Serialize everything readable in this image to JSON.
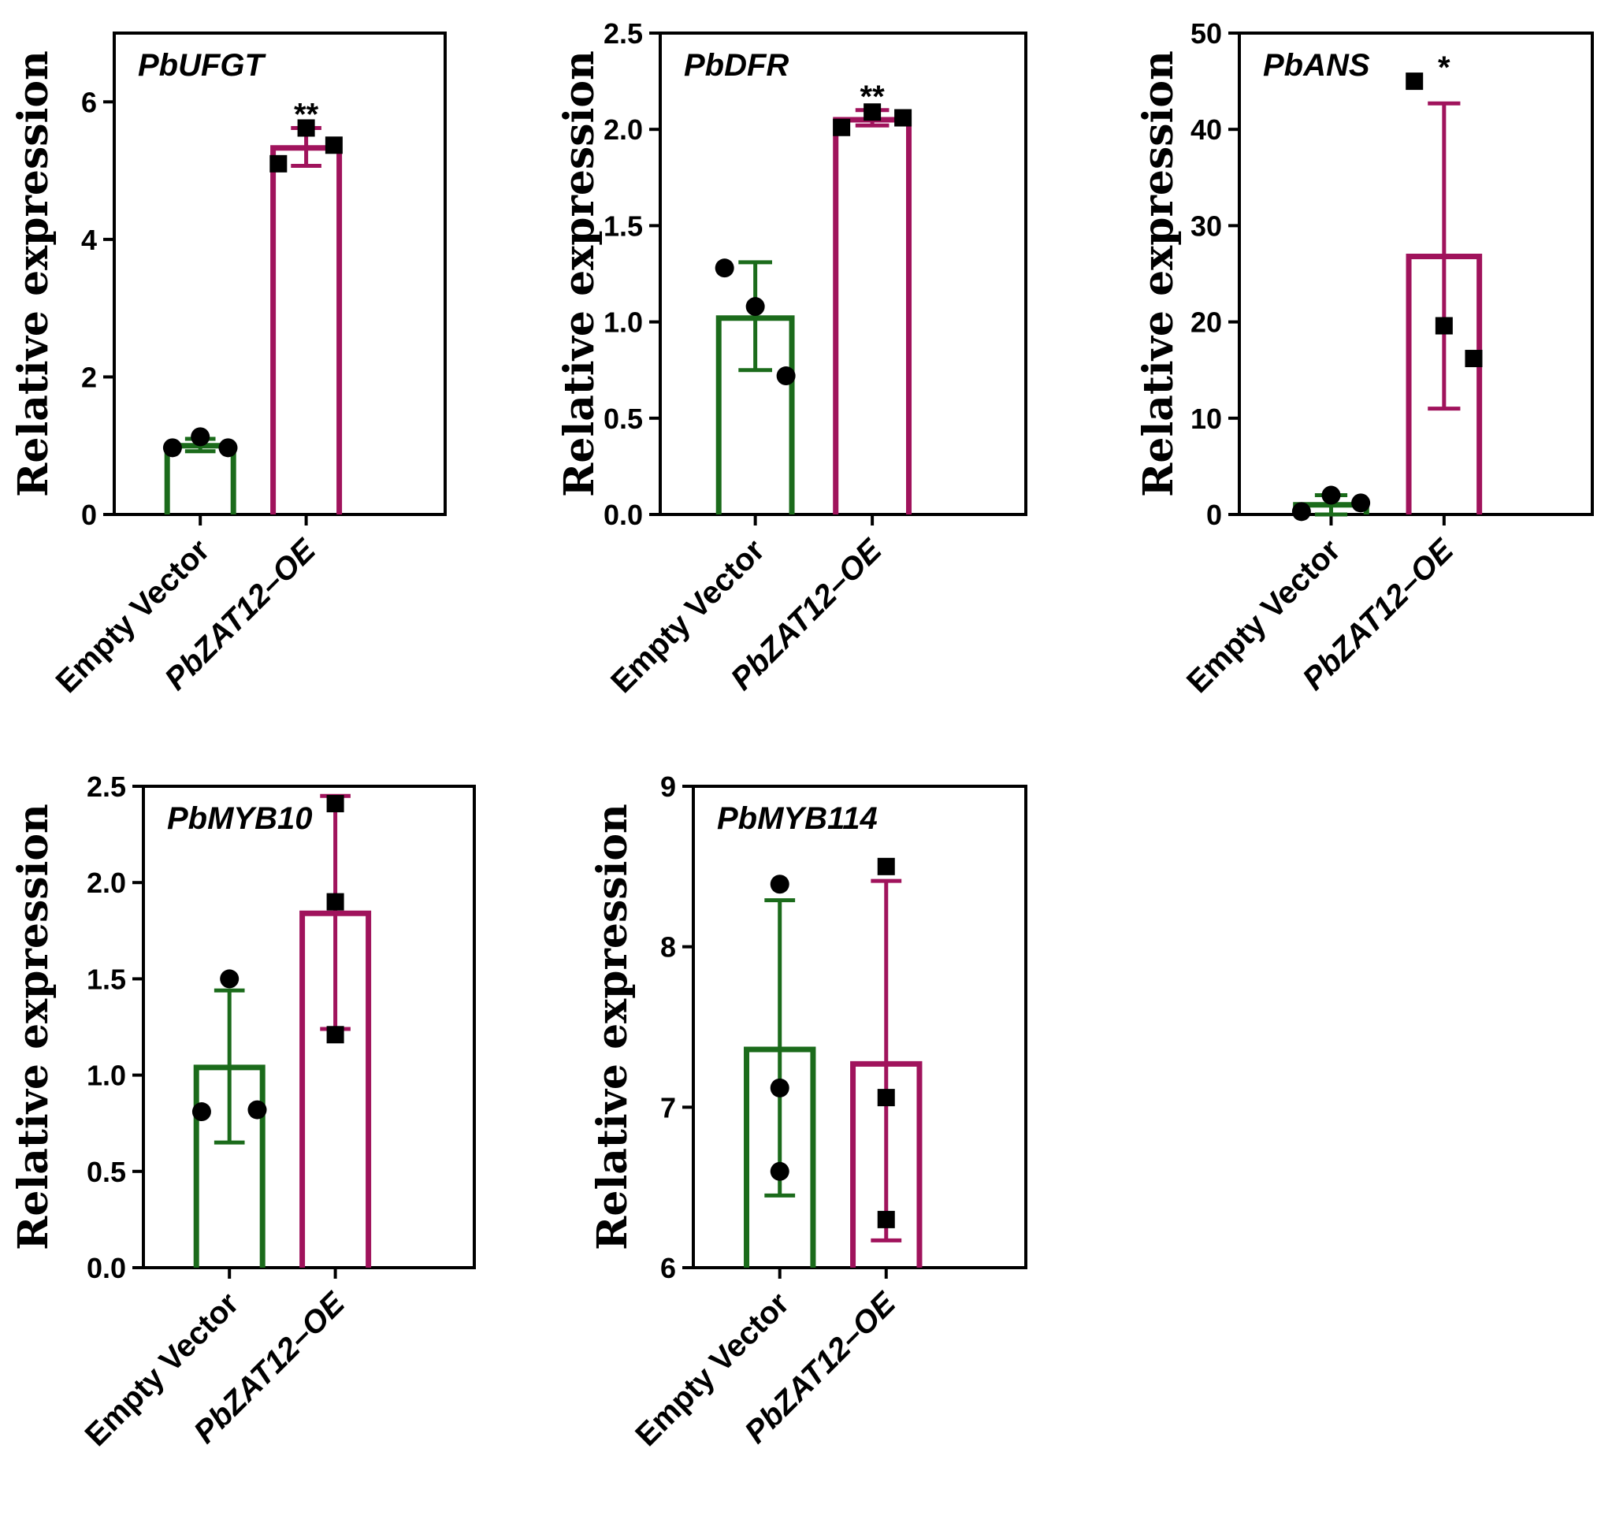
{
  "chart_data": [
    {
      "type": "bar",
      "title": "PbUFGT",
      "ylabel": "Relative expression",
      "categories": [
        "Empty Vector",
        "PbZAT12–OE"
      ],
      "italic_categories": [
        false,
        true
      ],
      "ylim": [
        0,
        7
      ],
      "yticks": [
        0,
        2,
        4,
        6
      ],
      "ytick_labels": [
        "0",
        "2",
        "4",
        "6"
      ],
      "values": [
        1.0,
        5.33
      ],
      "error": [
        [
          0.92,
          1.1
        ],
        [
          5.07,
          5.62
        ]
      ],
      "points": [
        [
          0.97,
          1.13,
          0.97
        ],
        [
          5.1,
          5.62,
          5.37
        ]
      ],
      "significance": [
        "",
        "**"
      ]
    },
    {
      "type": "bar",
      "title": "PbDFR",
      "ylabel": "Relative expression",
      "categories": [
        "Empty Vector",
        "PbZAT12–OE"
      ],
      "italic_categories": [
        false,
        true
      ],
      "ylim": [
        0,
        2.5
      ],
      "yticks": [
        0,
        0.5,
        1.0,
        1.5,
        2.0,
        2.5
      ],
      "ytick_labels": [
        "0.0",
        "0.5",
        "1.0",
        "1.5",
        "2.0",
        "2.5"
      ],
      "values": [
        1.02,
        2.05
      ],
      "error": [
        [
          0.75,
          1.31
        ],
        [
          2.02,
          2.1
        ]
      ],
      "points": [
        [
          1.28,
          1.08,
          0.72
        ],
        [
          2.01,
          2.09,
          2.06
        ]
      ],
      "significance": [
        "",
        "**"
      ]
    },
    {
      "type": "bar",
      "title": "PbANS",
      "ylabel": "Relative expression",
      "categories": [
        "Empty Vector",
        "PbZAT12–OE"
      ],
      "italic_categories": [
        false,
        true
      ],
      "ylim": [
        0,
        50
      ],
      "yticks": [
        0,
        10,
        20,
        30,
        40,
        50
      ],
      "ytick_labels": [
        "0",
        "10",
        "20",
        "30",
        "40",
        "50"
      ],
      "values": [
        1.0,
        26.8
      ],
      "error": [
        [
          0.0,
          2.0
        ],
        [
          11.0,
          42.7
        ]
      ],
      "points": [
        [
          0.3,
          2.0,
          1.2
        ],
        [
          45.0,
          19.6,
          16.2
        ]
      ],
      "significance": [
        "",
        "*"
      ]
    },
    {
      "type": "bar",
      "title": "PbMYB10",
      "ylabel": "Relative expression",
      "categories": [
        "Empty Vector",
        "PbZAT12–OE"
      ],
      "italic_categories": [
        false,
        true
      ],
      "ylim": [
        0,
        2.5
      ],
      "yticks": [
        0,
        0.5,
        1.0,
        1.5,
        2.0,
        2.5
      ],
      "ytick_labels": [
        "0.0",
        "0.5",
        "1.0",
        "1.5",
        "2.0",
        "2.5"
      ],
      "values": [
        1.04,
        1.84
      ],
      "error": [
        [
          0.65,
          1.44
        ],
        [
          1.24,
          2.45
        ]
      ],
      "points": [
        [
          0.81,
          1.5,
          0.82
        ],
        [
          2.41,
          1.9,
          1.21
        ]
      ],
      "significance": [
        "",
        ""
      ]
    },
    {
      "type": "bar",
      "title": "PbMYB114",
      "ylabel": "Relative expression",
      "categories": [
        "Empty Vector",
        "PbZAT12–OE"
      ],
      "italic_categories": [
        false,
        true
      ],
      "ylim": [
        6,
        9
      ],
      "yticks": [
        6,
        7,
        8,
        9
      ],
      "ytick_labels": [
        "6",
        "7",
        "8",
        "9"
      ],
      "values": [
        7.36,
        7.27
      ],
      "error": [
        [
          6.45,
          8.29
        ],
        [
          6.17,
          8.41
        ]
      ],
      "points": [
        [
          8.39,
          7.12,
          6.6
        ],
        [
          8.5,
          7.06,
          6.3
        ]
      ],
      "significance": [
        "",
        ""
      ]
    }
  ],
  "colors": {
    "empty_vector": "#1b6b1b",
    "overexpression": "#a0135c",
    "axis": "#000000",
    "points": "#000000"
  }
}
